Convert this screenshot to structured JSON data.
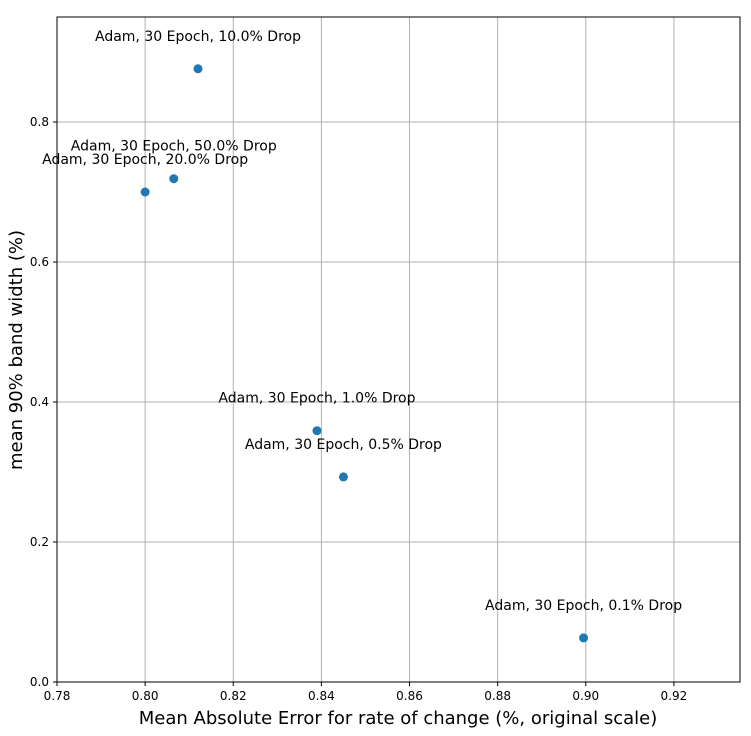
{
  "chart_data": {
    "type": "scatter",
    "title": "",
    "xlabel": "Mean Absolute Error for rate of change (%, original scale)",
    "ylabel": "mean 90% band width (%)",
    "xlim": [
      0.78,
      0.935
    ],
    "ylim": [
      0.0,
      0.95
    ],
    "grid": true,
    "point_color": "#1f77b4",
    "x_ticks": [
      {
        "value": 0.78,
        "label": "0.78"
      },
      {
        "value": 0.8,
        "label": "0.80"
      },
      {
        "value": 0.82,
        "label": "0.82"
      },
      {
        "value": 0.84,
        "label": "0.84"
      },
      {
        "value": 0.86,
        "label": "0.86"
      },
      {
        "value": 0.88,
        "label": "0.88"
      },
      {
        "value": 0.9,
        "label": "0.90"
      },
      {
        "value": 0.92,
        "label": "0.92"
      }
    ],
    "y_ticks": [
      {
        "value": 0.0,
        "label": "0.0"
      },
      {
        "value": 0.2,
        "label": "0.2"
      },
      {
        "value": 0.4,
        "label": "0.4"
      },
      {
        "value": 0.6,
        "label": "0.6"
      },
      {
        "value": 0.8,
        "label": "0.8"
      }
    ],
    "points": [
      {
        "x": 0.812,
        "y": 0.876,
        "label": "Adam, 30 Epoch, 10.0% Drop"
      },
      {
        "x": 0.8065,
        "y": 0.719,
        "label": "Adam, 30 Epoch, 50.0% Drop"
      },
      {
        "x": 0.8,
        "y": 0.7,
        "label": "Adam, 30 Epoch, 20.0% Drop"
      },
      {
        "x": 0.839,
        "y": 0.359,
        "label": "Adam, 30 Epoch, 1.0% Drop"
      },
      {
        "x": 0.845,
        "y": 0.293,
        "label": "Adam, 30 Epoch, 0.5% Drop"
      },
      {
        "x": 0.8995,
        "y": 0.063,
        "label": "Adam, 30 Epoch, 0.1% Drop"
      }
    ]
  }
}
